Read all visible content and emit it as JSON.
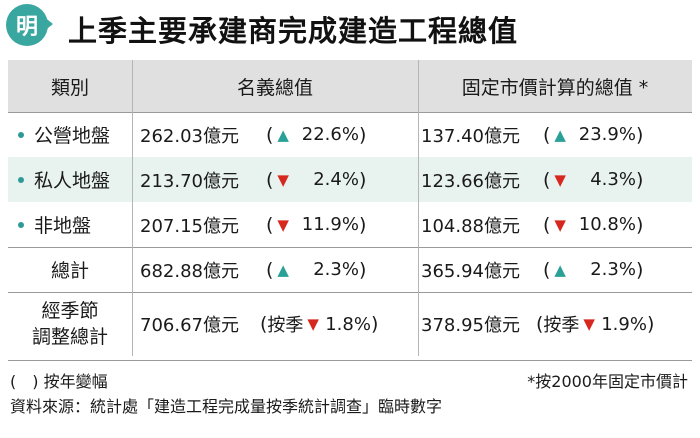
{
  "header": {
    "logo_char": "明",
    "title": "上季主要承建商完成建造工程總值"
  },
  "table": {
    "headers": [
      "類別",
      "名義總值",
      "固定市價計算的總值 *"
    ],
    "rows": [
      {
        "category": "公營地盤",
        "dot": true,
        "nominal": "262.03億元",
        "nominal_dir": "up",
        "nominal_pct": "22.6%",
        "nominal_prefix": "",
        "real": "137.40億元",
        "real_dir": "up",
        "real_pct": "23.9%",
        "real_prefix": ""
      },
      {
        "category": "私人地盤",
        "dot": true,
        "nominal": "213.70億元",
        "nominal_dir": "down",
        "nominal_pct": "2.4%",
        "nominal_prefix": "",
        "real": "123.66億元",
        "real_dir": "down",
        "real_pct": "4.3%",
        "real_prefix": ""
      },
      {
        "category": "非地盤",
        "dot": true,
        "nominal": "207.15億元",
        "nominal_dir": "down",
        "nominal_pct": "11.9%",
        "nominal_prefix": "",
        "real": "104.88億元",
        "real_dir": "down",
        "real_pct": "10.8%",
        "real_prefix": ""
      },
      {
        "category": "總計",
        "dot": false,
        "nominal": "682.88億元",
        "nominal_dir": "up",
        "nominal_pct": "2.3%",
        "nominal_prefix": "",
        "real": "365.94億元",
        "real_dir": "up",
        "real_pct": "2.3%",
        "real_prefix": ""
      },
      {
        "category_line1": "經季節",
        "category_line2": "調整總計",
        "dot": false,
        "nominal": "706.67億元",
        "nominal_dir": "down",
        "nominal_pct": "1.8%",
        "nominal_prefix": "按季",
        "real": "378.95億元",
        "real_dir": "down",
        "real_pct": "1.9%",
        "real_prefix": "按季"
      }
    ]
  },
  "symbols": {
    "open_paren": "(",
    "close_paren": ")",
    "up": "▲",
    "down": "▼"
  },
  "footer": {
    "note_paren": "(　) 按年變幅",
    "note_star": "*按2000年固定市價計",
    "source": "資料來源：統計處「建造工程完成量按季統計調查」臨時數字"
  },
  "colors": {
    "accent": "#3aa6a0",
    "up": "#2aa197",
    "down": "#d6281f",
    "highlight_row": "#e8f2ee",
    "header_bg": "#e0e0e0"
  }
}
